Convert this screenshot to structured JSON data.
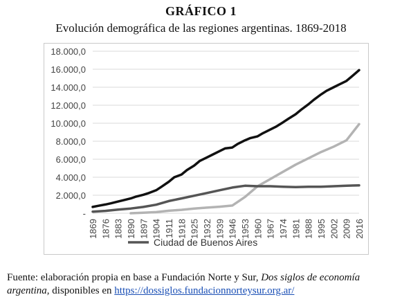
{
  "header": {
    "title": "GRÁFICO 1",
    "subtitle": "Evolución demográfica de las regiones argentinas. 1869-2018"
  },
  "source": {
    "prefix": "Fuente: elaboración propia en base a Fundación Norte y Sur, ",
    "book": "Dos siglos de economía argentina",
    "middle": ", disponibles en ",
    "link": "https://dossiglos.fundacionnorteysur.org.ar/"
  },
  "chart_data": {
    "type": "line",
    "x": [
      1869,
      1876,
      1883,
      1890,
      1897,
      1904,
      1911,
      1918,
      1925,
      1932,
      1939,
      1946,
      1953,
      1960,
      1967,
      1974,
      1981,
      1988,
      1995,
      2002,
      2009,
      2016
    ],
    "ylim": [
      0,
      18000
    ],
    "yticks": [
      "-",
      "2.000,0",
      "4.000,0",
      "6.000,0",
      "8.000,0",
      "10.000,0",
      "12.000,0",
      "14.000,0",
      "16.000,0",
      "18.000,0"
    ],
    "grid": "horizontal",
    "legend_position": "bottom-left",
    "colors": {
      "black": "#111111",
      "light_gray": "#b3b3b3",
      "dark_gray": "#555555",
      "grid": "#d9d9d9"
    },
    "series": [
      {
        "name": "",
        "color_key": "black",
        "values": [
          {
            "x": 1869,
            "y": 700
          },
          {
            "x": 1872,
            "y": 820
          },
          {
            "x": 1876,
            "y": 970
          },
          {
            "x": 1879,
            "y": 1100
          },
          {
            "x": 1883,
            "y": 1300
          },
          {
            "x": 1886,
            "y": 1450
          },
          {
            "x": 1890,
            "y": 1650
          },
          {
            "x": 1893,
            "y": 1850
          },
          {
            "x": 1897,
            "y": 2050
          },
          {
            "x": 1900,
            "y": 2250
          },
          {
            "x": 1904,
            "y": 2550
          },
          {
            "x": 1907,
            "y": 2950
          },
          {
            "x": 1911,
            "y": 3500
          },
          {
            "x": 1914,
            "y": 4000
          },
          {
            "x": 1918,
            "y": 4300
          },
          {
            "x": 1921,
            "y": 4800
          },
          {
            "x": 1925,
            "y": 5300
          },
          {
            "x": 1928,
            "y": 5800
          },
          {
            "x": 1932,
            "y": 6200
          },
          {
            "x": 1935,
            "y": 6500
          },
          {
            "x": 1939,
            "y": 6900
          },
          {
            "x": 1942,
            "y": 7200
          },
          {
            "x": 1946,
            "y": 7300
          },
          {
            "x": 1949,
            "y": 7700
          },
          {
            "x": 1953,
            "y": 8100
          },
          {
            "x": 1956,
            "y": 8350
          },
          {
            "x": 1960,
            "y": 8550
          },
          {
            "x": 1963,
            "y": 8900
          },
          {
            "x": 1967,
            "y": 9300
          },
          {
            "x": 1970,
            "y": 9600
          },
          {
            "x": 1974,
            "y": 10100
          },
          {
            "x": 1977,
            "y": 10500
          },
          {
            "x": 1981,
            "y": 11000
          },
          {
            "x": 1984,
            "y": 11500
          },
          {
            "x": 1988,
            "y": 12100
          },
          {
            "x": 1991,
            "y": 12600
          },
          {
            "x": 1995,
            "y": 13200
          },
          {
            "x": 1998,
            "y": 13600
          },
          {
            "x": 2002,
            "y": 14000
          },
          {
            "x": 2005,
            "y": 14300
          },
          {
            "x": 2009,
            "y": 14700
          },
          {
            "x": 2012,
            "y": 15200
          },
          {
            "x": 2016,
            "y": 15900
          }
        ]
      },
      {
        "name": "",
        "color_key": "light_gray",
        "values": [
          {
            "x": 1890,
            "y": 0
          },
          {
            "x": 1897,
            "y": 50
          },
          {
            "x": 1904,
            "y": 120
          },
          {
            "x": 1911,
            "y": 280
          },
          {
            "x": 1918,
            "y": 380
          },
          {
            "x": 1925,
            "y": 520
          },
          {
            "x": 1932,
            "y": 620
          },
          {
            "x": 1939,
            "y": 720
          },
          {
            "x": 1946,
            "y": 850
          },
          {
            "x": 1953,
            "y": 1800
          },
          {
            "x": 1960,
            "y": 3000
          },
          {
            "x": 1967,
            "y": 3800
          },
          {
            "x": 1974,
            "y": 4600
          },
          {
            "x": 1981,
            "y": 5400
          },
          {
            "x": 1988,
            "y": 6100
          },
          {
            "x": 1995,
            "y": 6800
          },
          {
            "x": 2002,
            "y": 7400
          },
          {
            "x": 2009,
            "y": 8100
          },
          {
            "x": 2016,
            "y": 9900
          }
        ]
      },
      {
        "name": "Ciudad de Buenos Aires",
        "color_key": "dark_gray",
        "values": [
          {
            "x": 1869,
            "y": 180
          },
          {
            "x": 1876,
            "y": 260
          },
          {
            "x": 1883,
            "y": 400
          },
          {
            "x": 1890,
            "y": 520
          },
          {
            "x": 1897,
            "y": 700
          },
          {
            "x": 1904,
            "y": 950
          },
          {
            "x": 1911,
            "y": 1350
          },
          {
            "x": 1918,
            "y": 1650
          },
          {
            "x": 1925,
            "y": 1950
          },
          {
            "x": 1932,
            "y": 2250
          },
          {
            "x": 1939,
            "y": 2550
          },
          {
            "x": 1946,
            "y": 2850
          },
          {
            "x": 1953,
            "y": 3050
          },
          {
            "x": 1960,
            "y": 3000
          },
          {
            "x": 1967,
            "y": 3000
          },
          {
            "x": 1974,
            "y": 2950
          },
          {
            "x": 1981,
            "y": 2900
          },
          {
            "x": 1988,
            "y": 2950
          },
          {
            "x": 1995,
            "y": 2950
          },
          {
            "x": 2002,
            "y": 3000
          },
          {
            "x": 2009,
            "y": 3050
          },
          {
            "x": 2016,
            "y": 3100
          }
        ]
      }
    ]
  }
}
